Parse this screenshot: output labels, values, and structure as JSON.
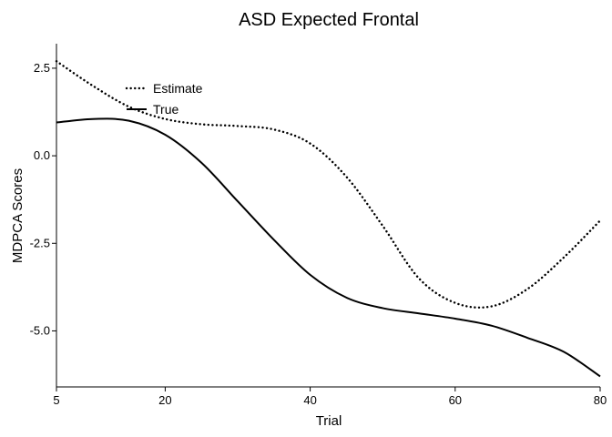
{
  "chart_data": {
    "type": "line",
    "title": "ASD Expected Frontal",
    "xlabel": "Trial",
    "ylabel": "MDPCA Scores",
    "xlim": [
      5,
      80
    ],
    "ylim": [
      -6.6,
      3.2
    ],
    "x_ticks": [
      5,
      20,
      40,
      60,
      80
    ],
    "x_tick_labels": [
      "5",
      "20",
      "40",
      "60",
      "80"
    ],
    "y_ticks": [
      2.5,
      0,
      -2.5,
      -5
    ],
    "y_tick_labels": [
      "2.5",
      "0.0",
      "-2.5",
      "-5.0"
    ],
    "grid": false,
    "legend": {
      "placement": "top-left"
    },
    "series": [
      {
        "name": "Estimate",
        "style": "dotted",
        "color": "#000000",
        "x": [
          5,
          10,
          15,
          20,
          25,
          30,
          35,
          40,
          45,
          50,
          55,
          60,
          65,
          70,
          75,
          80
        ],
        "y": [
          2.7,
          2.0,
          1.4,
          1.05,
          0.9,
          0.85,
          0.75,
          0.35,
          -0.6,
          -2.0,
          -3.5,
          -4.2,
          -4.3,
          -3.8,
          -2.9,
          -1.85
        ]
      },
      {
        "name": "True",
        "style": "solid",
        "color": "#000000",
        "x": [
          5,
          10,
          15,
          20,
          25,
          30,
          35,
          40,
          45,
          50,
          55,
          60,
          65,
          70,
          75,
          80
        ],
        "y": [
          0.95,
          1.05,
          1.0,
          0.6,
          -0.2,
          -1.3,
          -2.4,
          -3.4,
          -4.05,
          -4.35,
          -4.5,
          -4.65,
          -4.85,
          -5.2,
          -5.6,
          -6.3
        ]
      }
    ]
  }
}
